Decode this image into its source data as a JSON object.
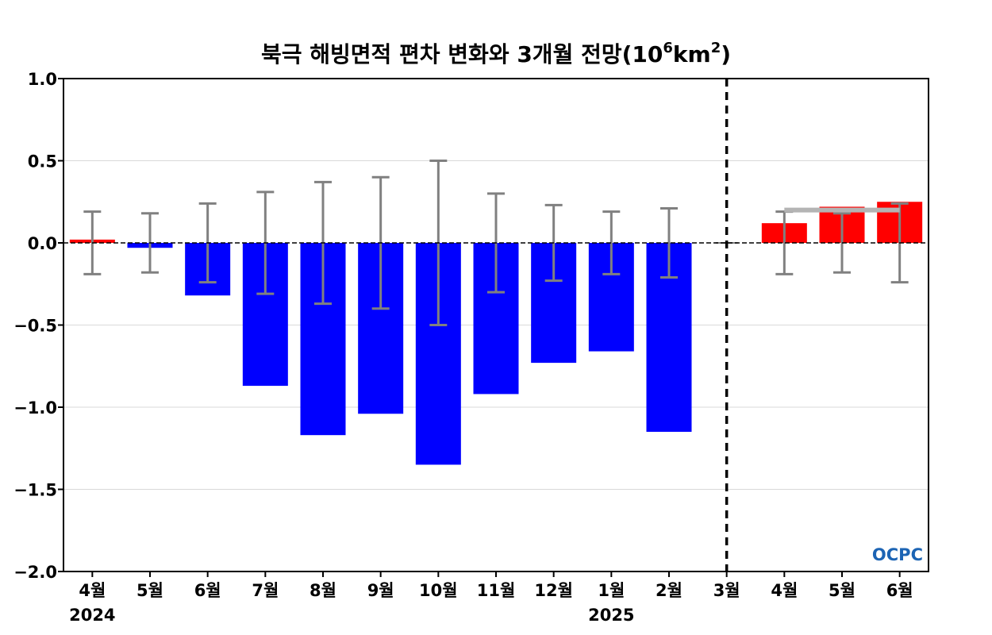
{
  "chart_data": {
    "type": "bar",
    "title": "북극 해빙면적 편차 변화와 3개월 전망(10⁶km²)",
    "title_parts": {
      "main": "북극 해빙면적 편차 변화와 3개월 전망(10",
      "exp1": "6",
      "mid": "km",
      "exp2": "2",
      "end": ")"
    },
    "categories": [
      "4월",
      "5월",
      "6월",
      "7월",
      "8월",
      "9월",
      "10월",
      "11월",
      "12월",
      "1월",
      "2월",
      "3월",
      "4월",
      "5월",
      "6월"
    ],
    "year_labels": [
      {
        "category_index": 0,
        "label": "2024"
      },
      {
        "category_index": 9,
        "label": "2025"
      }
    ],
    "values": [
      0.02,
      -0.03,
      -0.32,
      -0.87,
      -1.17,
      -1.04,
      -1.35,
      -0.92,
      -0.73,
      -0.66,
      -1.15,
      0.0,
      0.12,
      0.22,
      0.25
    ],
    "error_bars": [
      0.19,
      0.18,
      0.24,
      0.31,
      0.37,
      0.4,
      0.5,
      0.3,
      0.23,
      0.19,
      0.21,
      0.0,
      0.19,
      0.18,
      0.24
    ],
    "forecast_start_index": 12,
    "forecast_divider_after_index": 11,
    "climatology_segment": {
      "from_index": 12,
      "to_index": 14,
      "value": 0.2
    },
    "ylim": [
      -2.0,
      1.0
    ],
    "yticks": [
      "−2.0",
      "−1.5",
      "−1.0",
      "−0.5",
      "0.0",
      "0.5",
      "1.0"
    ],
    "ytick_values": [
      -2.0,
      -1.5,
      -1.0,
      -0.5,
      0.0,
      0.5,
      1.0
    ],
    "grid": true,
    "colors": {
      "positive": "#ff0000",
      "negative": "#0000ff",
      "error_bar": "#808080",
      "climatology": "#b4b4b4",
      "grid": "#d9d9d9",
      "axis": "#000000",
      "zero_line": "#000000"
    },
    "logo": "OCPC"
  }
}
